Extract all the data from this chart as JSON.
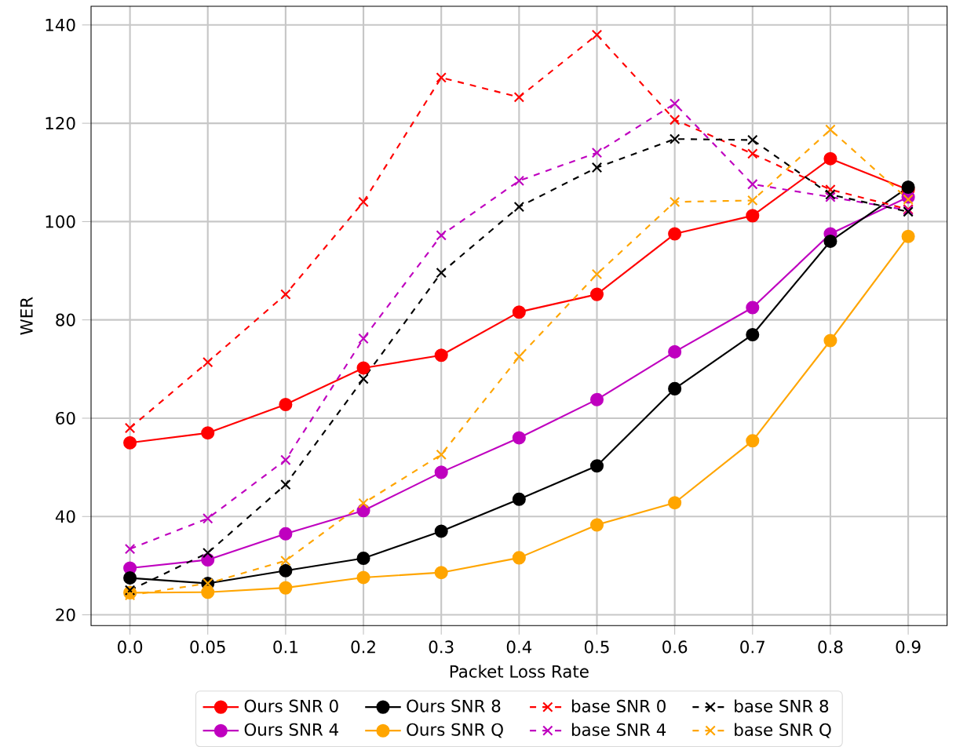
{
  "chart_data": {
    "type": "line",
    "xlabel": "Packet Loss Rate",
    "ylabel": "WER",
    "categories": [
      "0.0",
      "0.05",
      "0.1",
      "0.2",
      "0.3",
      "0.4",
      "0.5",
      "0.6",
      "0.7",
      "0.8",
      "0.9"
    ],
    "ylim": [
      17.8,
      143.8
    ],
    "yticks": [
      20,
      40,
      60,
      80,
      100,
      120,
      140
    ],
    "grid": true,
    "legend": "bottom",
    "series": [
      {
        "name": "Ours SNR 0",
        "color": "#ff0000",
        "marker": "circle",
        "line_style": "solid",
        "values": [
          55,
          57,
          62.8,
          70.2,
          72.8,
          81.6,
          85.2,
          97.5,
          101.2,
          112.8,
          106.5
        ]
      },
      {
        "name": "Ours SNR 4",
        "color": "#bf00bf",
        "marker": "circle",
        "line_style": "solid",
        "values": [
          29.5,
          31.2,
          36.5,
          41.2,
          49,
          56,
          63.8,
          73.5,
          82.5,
          97.5,
          105
        ]
      },
      {
        "name": "Ours SNR 8",
        "color": "#000000",
        "marker": "circle",
        "line_style": "solid",
        "values": [
          27.5,
          26.4,
          29,
          31.5,
          37,
          43.5,
          50.3,
          66,
          77,
          96,
          107
        ]
      },
      {
        "name": "Ours SNR Q",
        "color": "#ffa500",
        "marker": "circle",
        "line_style": "solid",
        "values": [
          24.5,
          24.6,
          25.5,
          27.6,
          28.6,
          31.6,
          38.3,
          42.8,
          55.4,
          75.8,
          97
        ]
      },
      {
        "name": "base SNR 0",
        "color": "#ff0000",
        "marker": "cross",
        "line_style": "dashed",
        "values": [
          58,
          71.4,
          85.2,
          104,
          129.3,
          125.3,
          138,
          120.7,
          113.8,
          106.5,
          102.5
        ]
      },
      {
        "name": "base SNR 4",
        "color": "#bf00bf",
        "marker": "cross",
        "line_style": "dashed",
        "values": [
          33.4,
          39.6,
          51.5,
          76.2,
          97.2,
          108.3,
          114,
          124,
          107.6,
          105,
          102.3
        ]
      },
      {
        "name": "base SNR 8",
        "color": "#000000",
        "marker": "cross",
        "line_style": "dashed",
        "values": [
          25,
          32.6,
          46.5,
          68,
          89.6,
          103,
          111,
          116.8,
          116.6,
          105.5,
          102
        ]
      },
      {
        "name": "base SNR Q",
        "color": "#ffa500",
        "marker": "cross",
        "line_style": "dashed",
        "values": [
          24,
          26.4,
          31,
          42.7,
          52.6,
          72.5,
          89.3,
          104,
          104.3,
          118.7,
          104.5
        ]
      }
    ]
  }
}
